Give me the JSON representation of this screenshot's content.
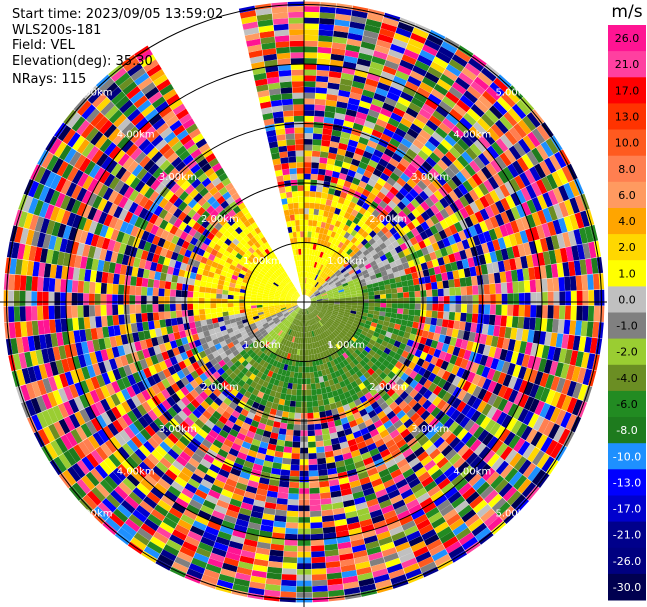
{
  "info": {
    "start_time": "Start time: 2023/09/05 13:59:02",
    "instrument": "WLS200s-181",
    "field": "Field: VEL",
    "elevation": "Elevation(deg): 35.30",
    "nrays": "NRays: 115"
  },
  "chart_data": {
    "type": "heatmap",
    "subtype": "ppi-polar",
    "field": "VEL",
    "units": "m/s",
    "elevation_deg": 35.3,
    "nrays": 115,
    "range_rings_km": [
      1.0,
      2.0,
      3.0,
      4.0,
      5.0
    ],
    "ring_labels": [
      "1.00km",
      "2.00km",
      "3.00km",
      "4.00km",
      "5.00km"
    ],
    "missing_sector_deg": [
      330,
      346
    ],
    "colorbar": {
      "label": "m/s",
      "ticks": [
        "26.0",
        "21.0",
        "17.0",
        "13.0",
        "10.0",
        "8.0",
        "6.0",
        "4.0",
        "2.0",
        "1.0",
        "0.0",
        "-1.0",
        "-2.0",
        "-4.0",
        "-6.0",
        "-8.0",
        "-10.0",
        "-13.0",
        "-17.0",
        "-21.0",
        "-26.0",
        "-30.0"
      ],
      "colors": [
        "#ff1493",
        "#ff40a0",
        "#ff0000",
        "#ff3300",
        "#ff5a1f",
        "#ff7f50",
        "#ff9a60",
        "#ffa500",
        "#ffd700",
        "#ffff00",
        "#c0c0c0",
        "#808080",
        "#9acd32",
        "#6b8e23",
        "#228b22",
        "#1e7b1e",
        "#1e90ff",
        "#0000ff",
        "#0000cd",
        "#00008b",
        "#000080",
        "#000050"
      ]
    }
  }
}
